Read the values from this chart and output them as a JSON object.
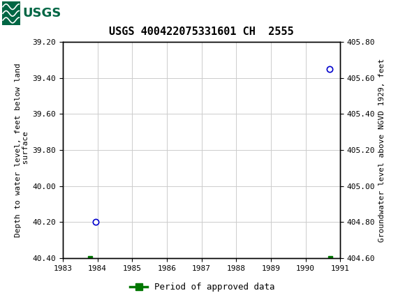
{
  "title": "USGS 400422075331601 CH  2555",
  "header_bg": "#006644",
  "plot_bg": "#ffffff",
  "grid_color": "#cccccc",
  "x_min": 1983,
  "x_max": 1991,
  "x_ticks": [
    1983,
    1984,
    1985,
    1986,
    1987,
    1988,
    1989,
    1990,
    1991
  ],
  "y_left_min": 39.2,
  "y_left_max": 40.4,
  "y_left_label": "Depth to water level, feet below land\n surface",
  "y_left_ticks": [
    39.2,
    39.4,
    39.6,
    39.8,
    40.0,
    40.2,
    40.4
  ],
  "y_right_min": 405.8,
  "y_right_max": 404.6,
  "y_right_label": "Groundwater level above NGVD 1929, feet",
  "y_right_ticks": [
    405.8,
    405.6,
    405.4,
    405.2,
    405.0,
    404.8,
    404.6
  ],
  "blue_points_x": [
    1983.95,
    1990.7
  ],
  "blue_points_y": [
    40.2,
    39.35
  ],
  "green_points_x": [
    1983.78,
    1990.72
  ],
  "green_points_y": [
    40.4,
    40.4
  ],
  "legend_label": "Period of approved data",
  "blue_color": "#0000cc",
  "green_color": "#007700",
  "title_fontsize": 11,
  "axis_label_fontsize": 8,
  "tick_fontsize": 8,
  "legend_fontsize": 9
}
